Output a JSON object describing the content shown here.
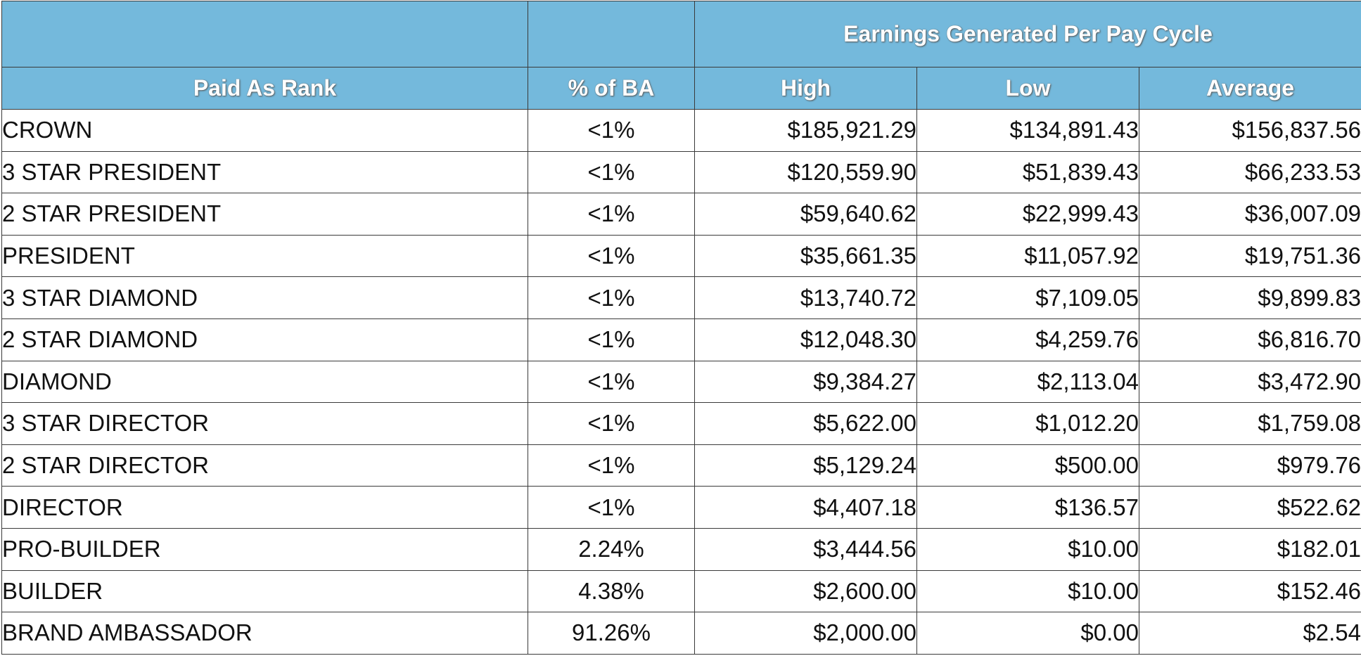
{
  "table": {
    "group_header": "Earnings Generated Per Pay Cycle",
    "columns": {
      "rank": "Paid As Rank",
      "pct": "% of BA",
      "high": "High",
      "low": "Low",
      "average": "Average"
    },
    "rows": [
      {
        "rank": "CROWN",
        "pct": "<1%",
        "high": "$185,921.29",
        "low": "$134,891.43",
        "average": "$156,837.56"
      },
      {
        "rank": "3 STAR PRESIDENT",
        "pct": "<1%",
        "high": "$120,559.90",
        "low": "$51,839.43",
        "average": "$66,233.53"
      },
      {
        "rank": "2 STAR PRESIDENT",
        "pct": "<1%",
        "high": "$59,640.62",
        "low": "$22,999.43",
        "average": "$36,007.09"
      },
      {
        "rank": "PRESIDENT",
        "pct": "<1%",
        "high": "$35,661.35",
        "low": "$11,057.92",
        "average": "$19,751.36"
      },
      {
        "rank": "3 STAR DIAMOND",
        "pct": "<1%",
        "high": "$13,740.72",
        "low": "$7,109.05",
        "average": "$9,899.83"
      },
      {
        "rank": "2 STAR DIAMOND",
        "pct": "<1%",
        "high": "$12,048.30",
        "low": "$4,259.76",
        "average": "$6,816.70"
      },
      {
        "rank": "DIAMOND",
        "pct": "<1%",
        "high": "$9,384.27",
        "low": "$2,113.04",
        "average": "$3,472.90"
      },
      {
        "rank": "3 STAR DIRECTOR",
        "pct": "<1%",
        "high": "$5,622.00",
        "low": "$1,012.20",
        "average": "$1,759.08"
      },
      {
        "rank": "2 STAR DIRECTOR",
        "pct": "<1%",
        "high": "$5,129.24",
        "low": "$500.00",
        "average": "$979.76"
      },
      {
        "rank": "DIRECTOR",
        "pct": "<1%",
        "high": "$4,407.18",
        "low": "$136.57",
        "average": "$522.62"
      },
      {
        "rank": "PRO-BUILDER",
        "pct": "2.24%",
        "high": "$3,444.56",
        "low": "$10.00",
        "average": "$182.01"
      },
      {
        "rank": "BUILDER",
        "pct": "4.38%",
        "high": "$2,600.00",
        "low": "$10.00",
        "average": "$152.46"
      },
      {
        "rank": "BRAND AMBASSADOR",
        "pct": "91.26%",
        "high": "$2,000.00",
        "low": "$0.00",
        "average": "$2.54"
      }
    ]
  },
  "colors": {
    "header_background": "#74b9dc",
    "header_text": "#ffffff",
    "border": "#3a3a3a",
    "body_text": "#111111"
  }
}
